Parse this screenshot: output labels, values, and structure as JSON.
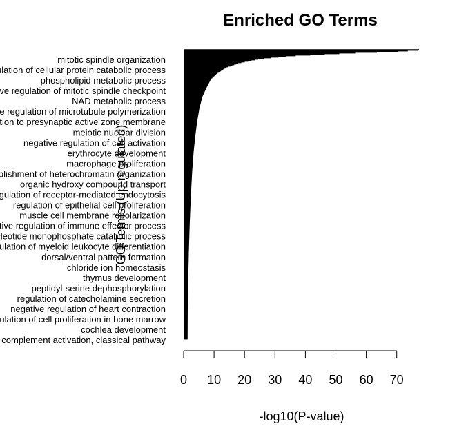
{
  "chart_data": {
    "type": "bar",
    "orientation": "horizontal",
    "title": "Enriched GO Terms",
    "xlabel": "-log10(P-value)",
    "ylabel": "GO Terms (Up-regulated)",
    "xlim": [
      0,
      77
    ],
    "xticks": [
      0,
      10,
      20,
      30,
      40,
      50,
      60,
      70
    ],
    "grid": false,
    "legend": "none",
    "bar_color": "#000000",
    "visible_category_labels": [
      "mitotic spindle organization",
      "positive regulation of cellular protein catabolic process",
      "phospholipid metabolic process",
      "negative regulation of mitotic spindle checkpoint",
      "NAD metabolic process",
      "negative regulation of microtubule polymerization",
      "protein localization to presynaptic active zone membrane",
      "meiotic nuclear division",
      "negative regulation of cell activation",
      "erythrocyte development",
      "macrophage proliferation",
      "establishment of heterochromatin organization",
      "organic hydroxy compound transport",
      "regulation of receptor-mediated endocytosis",
      "regulation of epithelial cell proliferation",
      "muscle cell membrane repolarization",
      "negative regulation of immune effector process",
      "purine nucleotide monophosphate catabolic process",
      "regulation of myeloid leukocyte differentiation",
      "dorsal/ventral pattern formation",
      "chloride ion homeostasis",
      "thymus development",
      "peptidyl-serine dephosphorylation",
      "regulation of catecholamine secretion",
      "negative regulation of heart contraction",
      "regulation of cell proliferation in bone marrow",
      "cochlea development",
      "complement activation, classical pathway"
    ],
    "curve_profile": {
      "description_of_values": "sorted -log10(P-value) per term, top to bottom",
      "term_fraction": [
        0.0,
        0.005,
        0.01,
        0.02,
        0.03,
        0.045,
        0.06,
        0.08,
        0.1,
        0.13,
        0.16,
        0.2,
        0.25,
        0.3,
        0.35,
        0.42,
        0.5,
        0.6,
        0.7,
        0.8,
        0.9,
        1.0
      ],
      "values": [
        77,
        70,
        55,
        35,
        25,
        18,
        14,
        11,
        9,
        7.5,
        6.2,
        5.2,
        4.4,
        3.8,
        3.3,
        2.8,
        2.4,
        2.0,
        1.7,
        1.5,
        1.35,
        1.3
      ]
    }
  }
}
